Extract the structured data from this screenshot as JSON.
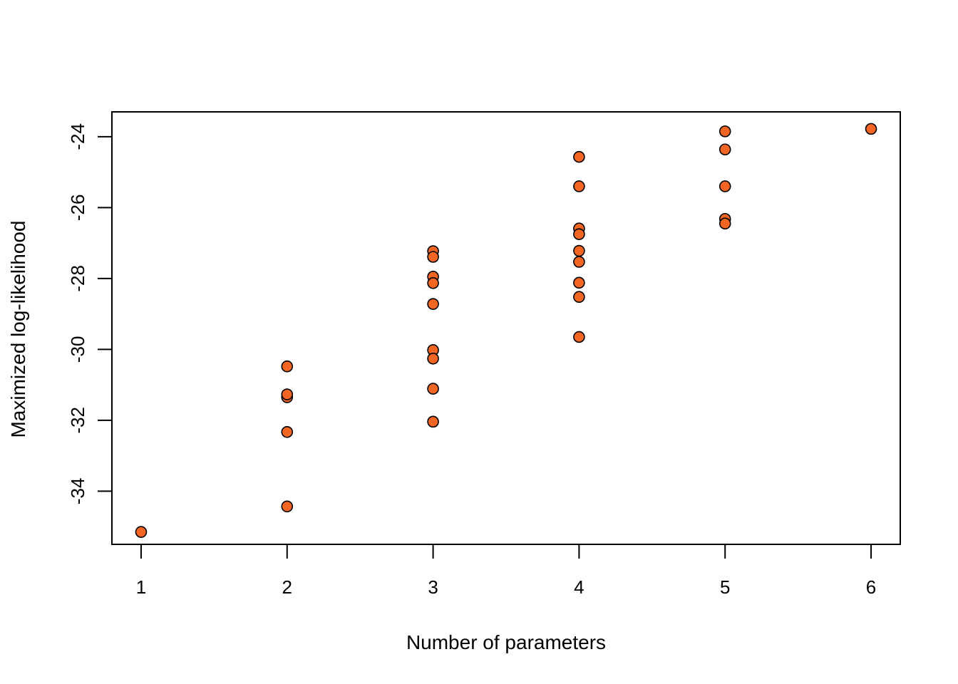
{
  "chart_data": {
    "type": "scatter",
    "title": "",
    "xlabel": "Number of parameters",
    "ylabel": "Maximized log-likelihood",
    "xlim": [
      0.8,
      6.2
    ],
    "ylim": [
      -35.5,
      -23.3
    ],
    "xticks": [
      1,
      2,
      3,
      4,
      5,
      6
    ],
    "yticks": [
      -34,
      -32,
      -30,
      -28,
      -26,
      -24
    ],
    "grid": false,
    "legend": "none",
    "marker_fill": "#f26522",
    "marker_edge": "#000000",
    "points": [
      {
        "x": 1,
        "y": -35.15
      },
      {
        "x": 2,
        "y": -30.48
      },
      {
        "x": 2,
        "y": -31.35
      },
      {
        "x": 2,
        "y": -31.27
      },
      {
        "x": 2,
        "y": -32.33
      },
      {
        "x": 2,
        "y": -34.43
      },
      {
        "x": 3,
        "y": -27.23
      },
      {
        "x": 3,
        "y": -27.39
      },
      {
        "x": 3,
        "y": -27.95
      },
      {
        "x": 3,
        "y": -28.13
      },
      {
        "x": 3,
        "y": -28.72
      },
      {
        "x": 3,
        "y": -30.02
      },
      {
        "x": 3,
        "y": -30.26
      },
      {
        "x": 3,
        "y": -31.11
      },
      {
        "x": 3,
        "y": -32.04
      },
      {
        "x": 4,
        "y": -24.57
      },
      {
        "x": 4,
        "y": -25.4
      },
      {
        "x": 4,
        "y": -26.59
      },
      {
        "x": 4,
        "y": -26.75
      },
      {
        "x": 4,
        "y": -27.22
      },
      {
        "x": 4,
        "y": -27.53
      },
      {
        "x": 4,
        "y": -28.12
      },
      {
        "x": 4,
        "y": -28.52
      },
      {
        "x": 4,
        "y": -29.65
      },
      {
        "x": 5,
        "y": -23.85
      },
      {
        "x": 5,
        "y": -24.36
      },
      {
        "x": 5,
        "y": -25.4
      },
      {
        "x": 5,
        "y": -26.32
      },
      {
        "x": 5,
        "y": -26.45
      },
      {
        "x": 6,
        "y": -23.78
      }
    ]
  }
}
